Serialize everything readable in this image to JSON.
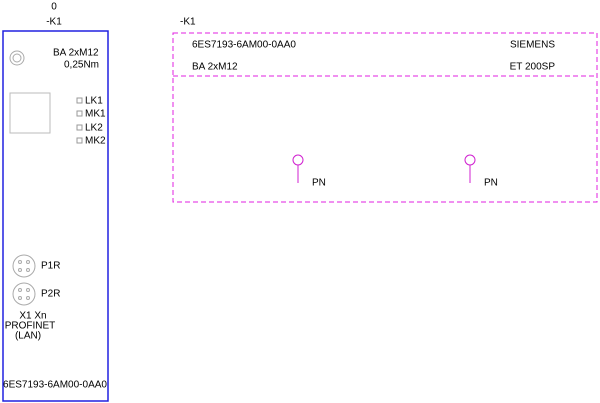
{
  "left_module": {
    "index": "0",
    "tag": "-K1",
    "name": "BA 2xM12",
    "torque": "0,25Nm",
    "leds": [
      "LK1",
      "MK1",
      "LK2",
      "MK2"
    ],
    "ports": [
      "P1R",
      "P2R"
    ],
    "interface": [
      "X1 Xn",
      "PROFINET",
      "(LAN)"
    ],
    "part_number": "6ES7193-6AM00-0AA0"
  },
  "right_module": {
    "tag": "-K1",
    "part_number": "6ES7193-6AM00-0AA0",
    "manufacturer": "SIEMENS",
    "name": "BA 2xM12",
    "family": "ET 200SP",
    "ports": [
      "PN",
      "PN"
    ]
  }
}
